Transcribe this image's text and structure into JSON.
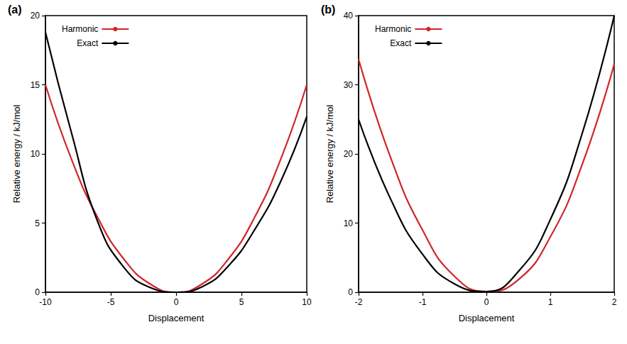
{
  "chart_data": [
    {
      "type": "line",
      "title": "(a)",
      "x_label": "Displacement",
      "y_label": "Relative energy / kJ/mol",
      "x": [
        -10,
        -8,
        -6,
        -4,
        -2,
        0,
        2,
        4,
        6,
        8,
        10
      ],
      "series": [
        {
          "name": "Harmonic",
          "color": "#d0262a",
          "values": [
            15,
            9.6,
            5.4,
            2.4,
            0.6,
            0,
            0.6,
            2.4,
            5.4,
            9.6,
            15
          ]
        },
        {
          "name": "Exact",
          "color": "#000000",
          "values": [
            18.8,
            11.5,
            5.1,
            1.8,
            0.35,
            0,
            0.4,
            1.9,
            4.5,
            8.0,
            12.7
          ]
        }
      ],
      "xlim": [
        -10,
        10
      ],
      "ylim": [
        0,
        20
      ],
      "xticks": [
        -10,
        -5,
        0,
        5,
        10
      ],
      "yticks": [
        0,
        5,
        10,
        15,
        20
      ],
      "legend": "upper left",
      "grid": false
    },
    {
      "type": "line",
      "title": "(b)",
      "x_label": "Displacement",
      "y_label": "Relative energy / kJ/mol",
      "x": [
        -2,
        -1.5,
        -1,
        -0.5,
        0,
        0.5,
        1,
        1.5,
        2
      ],
      "series": [
        {
          "name": "Harmonic",
          "color": "#d0262a",
          "values": [
            33.7,
            19.5,
            9,
            2.3,
            0.1,
            1.8,
            8,
            18.5,
            33
          ]
        },
        {
          "name": "Exact",
          "color": "#000000",
          "values": [
            25,
            13.5,
            5.5,
            1.2,
            0.1,
            3,
            10.5,
            23,
            40
          ]
        }
      ],
      "xlim": [
        -2,
        2
      ],
      "ylim": [
        0,
        40
      ],
      "xticks": [
        -2,
        -1,
        0,
        1,
        2
      ],
      "yticks": [
        0,
        10,
        20,
        30,
        40
      ],
      "legend": "upper left",
      "grid": false
    }
  ]
}
